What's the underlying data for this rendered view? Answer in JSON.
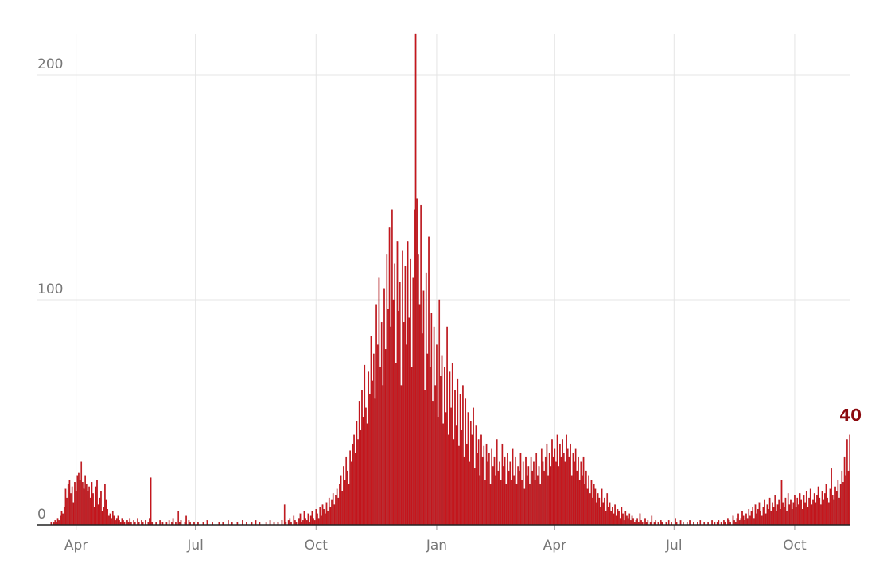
{
  "chart_data": {
    "type": "bar",
    "color": "#c8161d",
    "edge_color": "#a30f14",
    "label_color": "#8b0a0f",
    "ylim": [
      0,
      218
    ],
    "yticks": [
      0,
      100,
      200
    ],
    "grid": true,
    "categories": [
      null,
      null,
      null,
      null,
      null,
      null,
      null,
      null,
      null,
      null,
      null,
      null,
      null,
      null,
      null,
      null,
      null,
      null,
      null,
      null,
      null,
      null,
      null,
      null,
      null,
      null,
      null,
      null,
      null,
      "Apr",
      null,
      null,
      null,
      null,
      null,
      null,
      null,
      null,
      null,
      null,
      null,
      null,
      null,
      null,
      null,
      null,
      null,
      null,
      null,
      null,
      null,
      null,
      null,
      null,
      null,
      null,
      null,
      null,
      null,
      null,
      null,
      null,
      null,
      null,
      null,
      null,
      null,
      null,
      null,
      null,
      null,
      null,
      null,
      null,
      null,
      null,
      null,
      null,
      null,
      null,
      null,
      null,
      null,
      null,
      null,
      null,
      null,
      null,
      null,
      null,
      null,
      null,
      null,
      null,
      null,
      null,
      null,
      null,
      null,
      null,
      null,
      null,
      null,
      null,
      null,
      null,
      null,
      null,
      null,
      null,
      null,
      null,
      null,
      null,
      null,
      null,
      null,
      null,
      null,
      null,
      "Jul",
      null,
      null,
      null,
      null,
      null,
      null,
      null,
      null,
      null,
      null,
      null,
      null,
      null,
      null,
      null,
      null,
      null,
      null,
      null,
      null,
      null,
      null,
      null,
      null,
      null,
      null,
      null,
      null,
      null,
      null,
      null,
      null,
      null,
      null,
      null,
      null,
      null,
      null,
      null,
      null,
      null,
      null,
      null,
      null,
      null,
      null,
      null,
      null,
      null,
      null,
      null,
      null,
      null,
      null,
      null,
      null,
      null,
      null,
      null,
      null,
      null,
      null,
      null,
      null,
      null,
      null,
      null,
      null,
      null,
      null,
      null,
      null,
      null,
      null,
      null,
      null,
      null,
      null,
      null,
      null,
      null,
      null,
      null,
      null,
      null,
      null,
      null,
      null,
      null,
      null,
      null,
      "Oct",
      null,
      null,
      null,
      null,
      null,
      null,
      null,
      null,
      null,
      null,
      null,
      null,
      null,
      null,
      null,
      null,
      null,
      null,
      null,
      null,
      null,
      null,
      null,
      null,
      null,
      null,
      null,
      null,
      null,
      null,
      null,
      null,
      null,
      null,
      null,
      null,
      null,
      null,
      null,
      null,
      null,
      null,
      null,
      null,
      null,
      null,
      null,
      null,
      null,
      null,
      null,
      null,
      null,
      null,
      null,
      null,
      null,
      null,
      null,
      null,
      null,
      null,
      null,
      null,
      null,
      null,
      null,
      null,
      null,
      null,
      null,
      null,
      null,
      null,
      null,
      null,
      null,
      null,
      null,
      null,
      null,
      null,
      null,
      null,
      null,
      null,
      null,
      null,
      null,
      null,
      null,
      "Jan",
      null,
      null,
      null,
      null,
      null,
      null,
      null,
      null,
      null,
      null,
      null,
      null,
      null,
      null,
      null,
      null,
      null,
      null,
      null,
      null,
      null,
      null,
      null,
      null,
      null,
      null,
      null,
      null,
      null,
      null,
      null,
      null,
      null,
      null,
      null,
      null,
      null,
      null,
      null,
      null,
      null,
      null,
      null,
      null,
      null,
      null,
      null,
      null,
      null,
      null,
      null,
      null,
      null,
      null,
      null,
      null,
      null,
      null,
      null,
      null,
      null,
      null,
      null,
      null,
      null,
      null,
      null,
      null,
      null,
      null,
      null,
      null,
      null,
      null,
      null,
      null,
      null,
      null,
      null,
      null,
      null,
      null,
      null,
      null,
      null,
      null,
      null,
      null,
      null,
      "Apr",
      null,
      null,
      null,
      null,
      null,
      null,
      null,
      null,
      null,
      null,
      null,
      null,
      null,
      null,
      null,
      null,
      null,
      null,
      null,
      null,
      null,
      null,
      null,
      null,
      null,
      null,
      null,
      null,
      null,
      null,
      null,
      null,
      null,
      null,
      null,
      null,
      null,
      null,
      null,
      null,
      null,
      null,
      null,
      null,
      null,
      null,
      null,
      null,
      null,
      null,
      null,
      null,
      null,
      null,
      null,
      null,
      null,
      null,
      null,
      null,
      null,
      null,
      null,
      null,
      null,
      null,
      null,
      null,
      null,
      null,
      null,
      null,
      null,
      null,
      null,
      null,
      null,
      null,
      null,
      null,
      null,
      null,
      null,
      null,
      null,
      null,
      null,
      null,
      null,
      null,
      "Jul",
      null,
      null,
      null,
      null,
      null,
      null,
      null,
      null,
      null,
      null,
      null,
      null,
      null,
      null,
      null,
      null,
      null,
      null,
      null,
      null,
      null,
      null,
      null,
      null,
      null,
      null,
      null,
      null,
      null,
      null,
      null,
      null,
      null,
      null,
      null,
      null,
      null,
      null,
      null,
      null,
      null,
      null,
      null,
      null,
      null,
      null,
      null,
      null,
      null,
      null,
      null,
      null,
      null,
      null,
      null,
      null,
      null,
      null,
      null,
      null,
      null,
      null,
      null,
      null,
      null,
      null,
      null,
      null,
      null,
      null,
      null,
      null,
      null,
      null,
      null,
      null,
      null,
      null,
      null,
      null,
      null,
      null,
      null,
      null,
      null,
      null,
      null,
      null,
      null,
      null,
      null,
      "Oct",
      null,
      null,
      null,
      null,
      null,
      null,
      null,
      null,
      null,
      null,
      null,
      null,
      null,
      null,
      null,
      null,
      null,
      null,
      null,
      null,
      null,
      null,
      null,
      null,
      null,
      null,
      null,
      null,
      null,
      null,
      null,
      null,
      null,
      null,
      null,
      null,
      null,
      null,
      null,
      null,
      null,
      null
    ],
    "values": [
      0,
      0,
      0,
      0,
      0,
      0,
      0,
      0,
      0,
      0,
      1,
      0,
      1,
      2,
      1,
      3,
      2,
      4,
      6,
      5,
      8,
      16,
      12,
      18,
      20,
      14,
      17,
      10,
      19,
      15,
      22,
      23,
      20,
      28,
      19,
      16,
      22,
      18,
      15,
      17,
      12,
      19,
      14,
      8,
      17,
      20,
      9,
      12,
      15,
      6,
      8,
      18,
      11,
      7,
      4,
      5,
      3,
      6,
      4,
      2,
      3,
      4,
      2,
      1,
      3,
      2,
      1,
      0,
      2,
      1,
      3,
      1,
      0,
      2,
      1,
      0,
      3,
      1,
      0,
      2,
      1,
      0,
      2,
      0,
      1,
      3,
      21,
      1,
      0,
      0,
      1,
      0,
      0,
      2,
      0,
      1,
      0,
      0,
      1,
      0,
      2,
      0,
      1,
      3,
      0,
      1,
      0,
      6,
      1,
      2,
      0,
      0,
      1,
      4,
      0,
      2,
      1,
      0,
      0,
      1,
      0,
      0,
      1,
      0,
      0,
      0,
      1,
      0,
      0,
      2,
      0,
      0,
      0,
      1,
      0,
      0,
      0,
      0,
      1,
      0,
      0,
      1,
      0,
      0,
      0,
      2,
      0,
      0,
      1,
      0,
      0,
      0,
      1,
      0,
      0,
      0,
      2,
      0,
      0,
      1,
      0,
      0,
      0,
      1,
      0,
      0,
      2,
      0,
      0,
      1,
      0,
      0,
      0,
      0,
      1,
      0,
      0,
      2,
      0,
      0,
      1,
      0,
      0,
      1,
      0,
      0,
      2,
      0,
      9,
      1,
      0,
      2,
      3,
      1,
      0,
      4,
      2,
      1,
      0,
      3,
      5,
      1,
      2,
      6,
      3,
      2,
      5,
      1,
      4,
      6,
      3,
      2,
      7,
      5,
      3,
      8,
      4,
      9,
      7,
      5,
      10,
      6,
      12,
      8,
      11,
      14,
      9,
      13,
      16,
      12,
      18,
      22,
      15,
      26,
      20,
      30,
      24,
      18,
      33,
      28,
      36,
      40,
      32,
      46,
      38,
      55,
      42,
      60,
      48,
      71,
      52,
      45,
      68,
      58,
      84,
      64,
      76,
      56,
      98,
      80,
      110,
      70,
      90,
      62,
      105,
      78,
      120,
      96,
      132,
      88,
      140,
      100,
      116,
      72,
      126,
      95,
      108,
      62,
      122,
      90,
      115,
      80,
      126,
      92,
      118,
      70,
      110,
      140,
      218,
      145,
      120,
      98,
      142,
      85,
      104,
      60,
      112,
      76,
      128,
      70,
      94,
      55,
      88,
      62,
      80,
      48,
      100,
      66,
      75,
      45,
      70,
      50,
      88,
      40,
      68,
      52,
      72,
      38,
      60,
      44,
      65,
      35,
      58,
      42,
      62,
      30,
      56,
      36,
      50,
      28,
      46,
      40,
      52,
      25,
      44,
      32,
      38,
      22,
      40,
      30,
      35,
      20,
      36,
      28,
      32,
      18,
      34,
      26,
      30,
      22,
      38,
      24,
      28,
      20,
      36,
      26,
      30,
      18,
      32,
      24,
      28,
      20,
      34,
      22,
      30,
      18,
      26,
      24,
      32,
      20,
      28,
      16,
      30,
      22,
      26,
      18,
      30,
      24,
      28,
      20,
      32,
      22,
      26,
      18,
      34,
      28,
      24,
      30,
      36,
      22,
      32,
      26,
      38,
      30,
      34,
      28,
      40,
      26,
      36,
      30,
      38,
      32,
      28,
      40,
      34,
      30,
      36,
      22,
      32,
      28,
      34,
      24,
      30,
      20,
      28,
      22,
      30,
      18,
      24,
      16,
      22,
      14,
      20,
      12,
      18,
      16,
      10,
      14,
      12,
      8,
      16,
      10,
      12,
      6,
      14,
      8,
      10,
      6,
      8,
      5,
      9,
      4,
      7,
      6,
      3,
      8,
      5,
      2,
      6,
      4,
      3,
      5,
      2,
      4,
      3,
      1,
      2,
      3,
      1,
      5,
      2,
      1,
      0,
      3,
      1,
      2,
      0,
      1,
      4,
      0,
      1,
      2,
      0,
      1,
      0,
      2,
      1,
      0,
      0,
      1,
      0,
      2,
      0,
      1,
      0,
      0,
      3,
      1,
      0,
      0,
      2,
      0,
      1,
      0,
      0,
      1,
      0,
      2,
      0,
      0,
      1,
      0,
      0,
      1,
      0,
      2,
      0,
      0,
      1,
      0,
      0,
      1,
      0,
      0,
      2,
      0,
      1,
      0,
      1,
      2,
      0,
      1,
      0,
      2,
      1,
      0,
      3,
      2,
      1,
      0,
      4,
      2,
      1,
      3,
      5,
      2,
      3,
      6,
      4,
      2,
      5,
      3,
      7,
      4,
      6,
      8,
      3,
      9,
      5,
      7,
      10,
      6,
      4,
      8,
      11,
      5,
      9,
      7,
      12,
      6,
      10,
      8,
      13,
      6,
      9,
      11,
      7,
      20,
      10,
      8,
      12,
      6,
      14,
      9,
      11,
      7,
      10,
      13,
      8,
      12,
      9,
      14,
      11,
      7,
      13,
      10,
      15,
      8,
      12,
      16,
      9,
      11,
      14,
      10,
      13,
      17,
      12,
      9,
      15,
      11,
      14,
      18,
      12,
      10,
      16,
      25,
      13,
      11,
      17,
      15,
      20,
      12,
      18,
      24,
      19,
      30,
      22,
      38,
      24,
      40
    ]
  }
}
